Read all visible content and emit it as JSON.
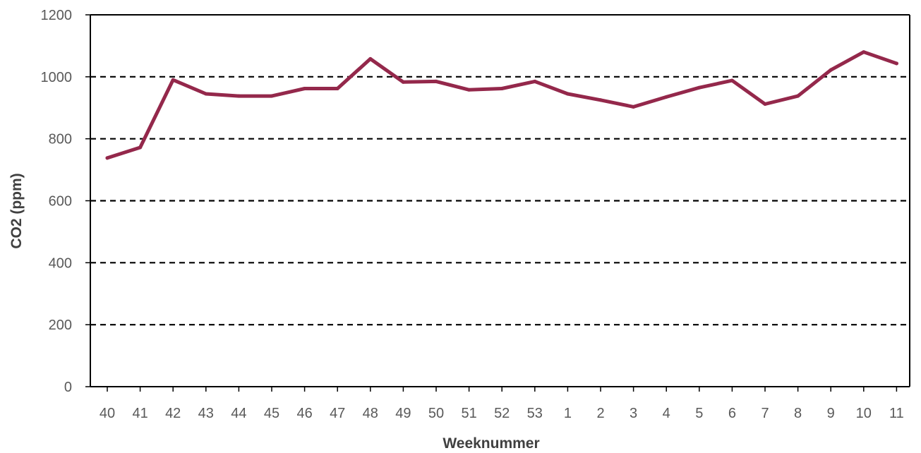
{
  "chart_data": {
    "type": "line",
    "title": "",
    "xlabel": "Weeknummer",
    "ylabel": "CO2 (ppm)",
    "ylim": [
      0,
      1200
    ],
    "yticks": [
      0,
      200,
      400,
      600,
      800,
      1000,
      1200
    ],
    "grid": "dashed horizontal",
    "categories": [
      "40",
      "41",
      "42",
      "43",
      "44",
      "45",
      "46",
      "47",
      "48",
      "49",
      "50",
      "51",
      "52",
      "53",
      "1",
      "2",
      "3",
      "4",
      "5",
      "6",
      "7",
      "8",
      "9",
      "10",
      "11"
    ],
    "series": [
      {
        "values": [
          738,
          772,
          990,
          945,
          938,
          938,
          962,
          962,
          1058,
          983,
          985,
          958,
          962,
          985,
          945,
          925,
          903,
          935,
          965,
          988,
          912,
          938,
          1022,
          1080,
          1043
        ],
        "color": "#94284b"
      }
    ],
    "axis_color": "#000000",
    "grid_color": "#000000"
  }
}
